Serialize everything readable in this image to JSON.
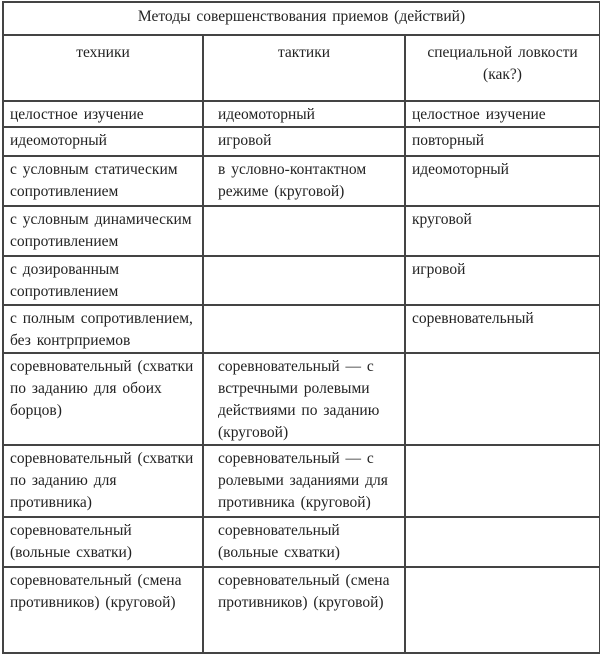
{
  "title": "Методы совершенствования приемов (действий)",
  "columns": [
    "техники",
    "тактики",
    "специальной ловкости (как?)"
  ],
  "rows": [
    [
      "целостное изучение",
      "идеомоторный",
      "целостное изучение"
    ],
    [
      "идеомоторный",
      "игровой",
      "повторный"
    ],
    [
      "с условным статическим сопротивлением",
      "в условно-контактном режиме (круговой)",
      "идеомоторный"
    ],
    [
      "с условным динамическим сопротивлением",
      "",
      "круговой"
    ],
    [
      "с дозированным сопротивлением",
      "",
      "игровой"
    ],
    [
      "с полным сопротивлением, без контрприемов",
      "",
      "соревновательный"
    ],
    [
      "соревновательный (схватки по заданию для обоих борцов)",
      "соревновательный — с встречными ролевыми действиями по заданию (круговой)",
      ""
    ],
    [
      "соревновательный (схватки по заданию для противника)",
      "соревновательный — с ролевыми заданиями для противника (круговой)",
      ""
    ],
    [
      "соревновательный (вольные схватки)",
      "соревновательный (вольные схватки)",
      ""
    ],
    [
      "соревновательный (смена противников) (круговой)",
      "соревновательный (смена противников) (круговой)",
      ""
    ]
  ]
}
